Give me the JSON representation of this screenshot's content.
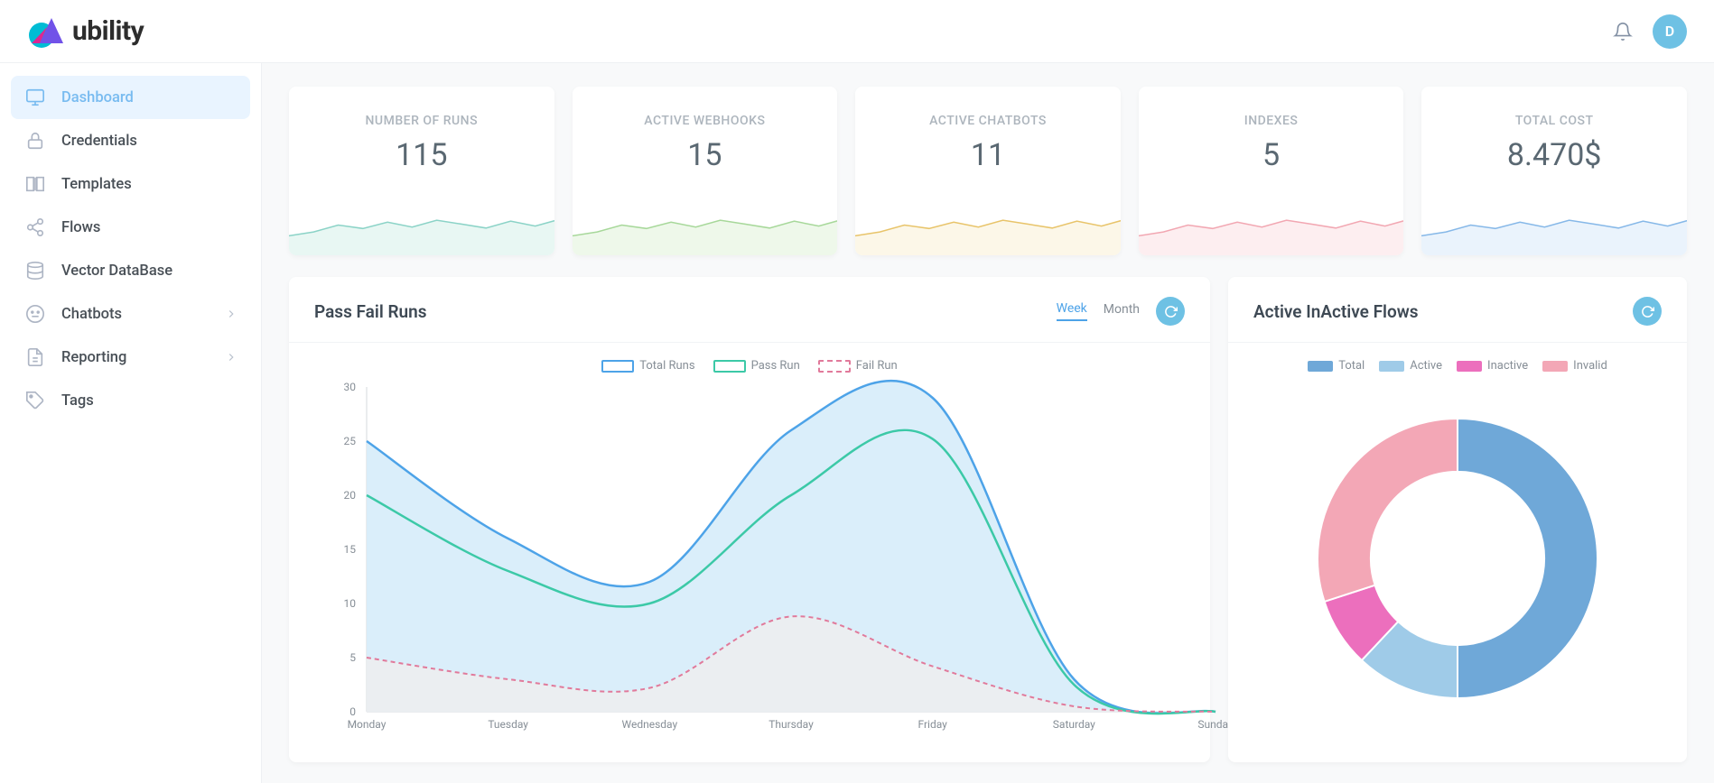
{
  "header": {
    "logo_text": "ubility",
    "logo_colors": {
      "circle": "#00bcd4",
      "tri_left": "#e91e8f",
      "tri_right": "#7152e8"
    },
    "avatar_initial": "D",
    "avatar_bg": "#6ec1e4"
  },
  "sidebar": {
    "items": [
      {
        "label": "Dashboard",
        "icon": "monitor",
        "active": true,
        "has_children": false
      },
      {
        "label": "Credentials",
        "icon": "lock",
        "active": false,
        "has_children": false
      },
      {
        "label": "Templates",
        "icon": "book",
        "active": false,
        "has_children": false
      },
      {
        "label": "Flows",
        "icon": "share",
        "active": false,
        "has_children": false
      },
      {
        "label": "Vector DataBase",
        "icon": "database",
        "active": false,
        "has_children": false
      },
      {
        "label": "Chatbots",
        "icon": "smiley",
        "active": false,
        "has_children": true
      },
      {
        "label": "Reporting",
        "icon": "file",
        "active": false,
        "has_children": true
      },
      {
        "label": "Tags",
        "icon": "tag",
        "active": false,
        "has_children": false
      }
    ]
  },
  "stats": [
    {
      "label": "NUMBER OF RUNS",
      "value": "115",
      "stroke": "#8bd3c7",
      "fill": "#e8f7f3"
    },
    {
      "label": "ACTIVE WEBHOOKS",
      "value": "15",
      "stroke": "#a7d89a",
      "fill": "#eef8ea"
    },
    {
      "label": "ACTIVE CHATBOTS",
      "value": "11",
      "stroke": "#e8c46a",
      "fill": "#fcf7e8"
    },
    {
      "label": "INDEXES",
      "value": "5",
      "stroke": "#f2a7b2",
      "fill": "#fdeef0"
    },
    {
      "label": "TOTAL COST",
      "value": "8.470$",
      "stroke": "#86b8e8",
      "fill": "#eaf3fc"
    }
  ],
  "spark_shape": [
    0.4,
    0.48,
    0.62,
    0.55,
    0.68,
    0.58,
    0.72,
    0.64,
    0.56,
    0.7,
    0.6,
    0.74
  ],
  "pass_fail_chart": {
    "title": "Pass Fail Runs",
    "tabs": [
      "Week",
      "Month"
    ],
    "active_tab": "Week",
    "legend": [
      {
        "label": "Total Runs",
        "color": "#4da3e8",
        "dashed": false
      },
      {
        "label": "Pass Run",
        "color": "#3cc9a7",
        "dashed": false
      },
      {
        "label": "Fail Run",
        "color": "#e17a9b",
        "dashed": true
      }
    ],
    "x_labels": [
      "Monday",
      "Tuesday",
      "Wednesday",
      "Thursday",
      "Friday",
      "Saturday",
      "Sunday"
    ],
    "y_max": 30,
    "y_tick_step": 5,
    "series": {
      "total": [
        25,
        16,
        12,
        26,
        29,
        3,
        0
      ],
      "pass": [
        20,
        13,
        10,
        20,
        25.2,
        2.5,
        0
      ],
      "fail": [
        5,
        3,
        2.2,
        8.8,
        4.2,
        0.5,
        0
      ]
    },
    "fill_colors": {
      "total": "#d6ecf9",
      "fail": "#ecedef"
    },
    "axis_color": "#d4d8dd",
    "grid_color": "#f1f3f5",
    "text_color": "#868e96",
    "fontsize_axis": 12
  },
  "flows_chart": {
    "title": "Active InActive Flows",
    "type": "donut",
    "legend": [
      {
        "label": "Total",
        "color": "#6fa8d8"
      },
      {
        "label": "Active",
        "color": "#9fcbe8"
      },
      {
        "label": "Inactive",
        "color": "#ec6fbd"
      },
      {
        "label": "Invalid",
        "color": "#f3a7b6"
      }
    ],
    "values": [
      50,
      12,
      8,
      30
    ],
    "inner_radius_pct": 62,
    "background_color": "#ffffff"
  },
  "colors": {
    "page_bg": "#f8f9fa",
    "panel_bg": "#ffffff",
    "accent": "#6ec1e4",
    "text_muted": "#adb5bd",
    "text_body": "#495057"
  }
}
